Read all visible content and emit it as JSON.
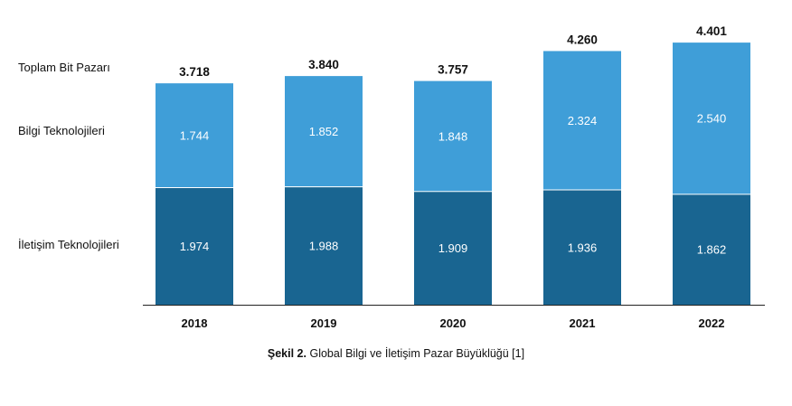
{
  "row_labels": {
    "total": "Toplam Bit Pazarı",
    "it": "Bilgi Teknolojileri",
    "comm": "İletişim Teknolojileri"
  },
  "caption": {
    "bold": "Şekil 2.",
    "text": "Global Bilgi ve İletişim Pazar Büyüklüğü [1]"
  },
  "chart_data": {
    "type": "bar",
    "stacked": true,
    "categories": [
      "2018",
      "2019",
      "2020",
      "2021",
      "2022"
    ],
    "totals": [
      "3.718",
      "3.840",
      "3.757",
      "4.260",
      "4.401"
    ],
    "series": [
      {
        "name": "İletişim Teknolojileri",
        "values": [
          1.974,
          1.988,
          1.909,
          1.936,
          1.862
        ],
        "labels": [
          "1.974",
          "1.988",
          "1.909",
          "1.936",
          "1.862"
        ],
        "color": "#196591"
      },
      {
        "name": "Bilgi Teknolojileri",
        "values": [
          1.744,
          1.852,
          1.848,
          2.324,
          2.54
        ],
        "labels": [
          "1.744",
          "1.852",
          "1.848",
          "2.324",
          "2.540"
        ],
        "color": "#3f9ed8"
      }
    ]
  }
}
